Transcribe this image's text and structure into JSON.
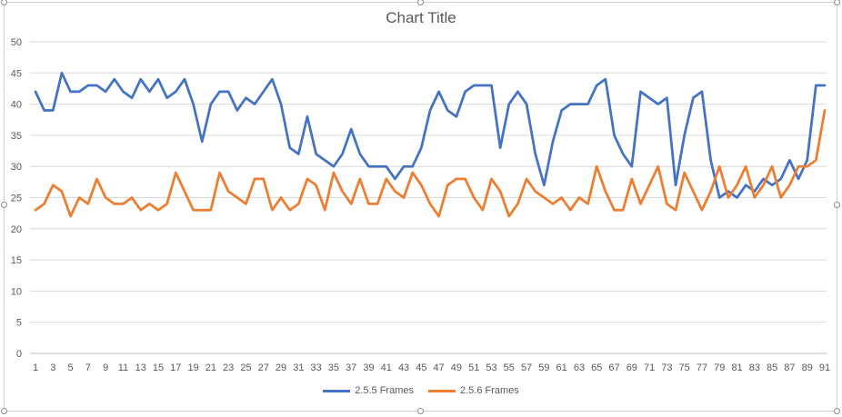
{
  "chart_data": {
    "type": "line",
    "title": "Chart Title",
    "xlabel": "",
    "ylabel": "",
    "ylim": [
      0,
      50
    ],
    "yticks": [
      0,
      5,
      10,
      15,
      20,
      25,
      30,
      35,
      40,
      45,
      50
    ],
    "x": [
      1,
      2,
      3,
      4,
      5,
      6,
      7,
      8,
      9,
      10,
      11,
      12,
      13,
      14,
      15,
      16,
      17,
      18,
      19,
      20,
      21,
      22,
      23,
      24,
      25,
      26,
      27,
      28,
      29,
      30,
      31,
      32,
      33,
      34,
      35,
      36,
      37,
      38,
      39,
      40,
      41,
      42,
      43,
      44,
      45,
      46,
      47,
      48,
      49,
      50,
      51,
      52,
      53,
      54,
      55,
      56,
      57,
      58,
      59,
      60,
      61,
      62,
      63,
      64,
      65,
      66,
      67,
      68,
      69,
      70,
      71,
      72,
      73,
      74,
      75,
      76,
      77,
      78,
      79,
      80,
      81,
      82,
      83,
      84,
      85,
      86,
      87,
      88,
      89,
      90,
      91
    ],
    "xticks": [
      1,
      3,
      5,
      7,
      9,
      11,
      13,
      15,
      17,
      19,
      21,
      23,
      25,
      27,
      29,
      31,
      33,
      35,
      37,
      39,
      41,
      43,
      45,
      47,
      49,
      51,
      53,
      55,
      57,
      59,
      61,
      63,
      65,
      67,
      69,
      71,
      73,
      75,
      77,
      79,
      81,
      83,
      85,
      87,
      89,
      91
    ],
    "grid": true,
    "legend_position": "bottom",
    "series": [
      {
        "name": "2.5.5 Frames",
        "color": "#4472C4",
        "values": [
          42,
          39,
          39,
          45,
          42,
          42,
          43,
          43,
          42,
          44,
          42,
          41,
          44,
          42,
          44,
          41,
          42,
          44,
          40,
          34,
          40,
          42,
          42,
          39,
          41,
          40,
          42,
          44,
          40,
          33,
          32,
          38,
          32,
          31,
          30,
          32,
          36,
          32,
          30,
          30,
          30,
          28,
          30,
          30,
          33,
          39,
          42,
          39,
          38,
          42,
          43,
          43,
          43,
          33,
          40,
          42,
          40,
          32,
          27,
          34,
          39,
          40,
          40,
          40,
          43,
          44,
          35,
          32,
          30,
          42,
          41,
          40,
          41,
          27,
          35,
          41,
          42,
          31,
          25,
          26,
          25,
          27,
          26,
          28,
          27,
          28,
          31,
          28,
          31,
          43,
          43
        ]
      },
      {
        "name": "2.5.6 Frames",
        "color": "#ED7D31",
        "values": [
          23,
          24,
          27,
          26,
          22,
          25,
          24,
          28,
          25,
          24,
          24,
          25,
          23,
          24,
          23,
          24,
          29,
          26,
          23,
          23,
          23,
          29,
          26,
          25,
          24,
          28,
          28,
          23,
          25,
          23,
          24,
          28,
          27,
          23,
          29,
          26,
          24,
          28,
          24,
          24,
          28,
          26,
          25,
          29,
          27,
          24,
          22,
          27,
          28,
          28,
          25,
          23,
          28,
          26,
          22,
          24,
          28,
          26,
          25,
          24,
          25,
          23,
          25,
          24,
          30,
          26,
          23,
          23,
          28,
          24,
          27,
          30,
          24,
          23,
          29,
          26,
          23,
          26,
          30,
          25,
          27,
          30,
          25,
          27,
          30,
          25,
          27,
          30,
          30,
          31,
          39
        ]
      }
    ]
  }
}
